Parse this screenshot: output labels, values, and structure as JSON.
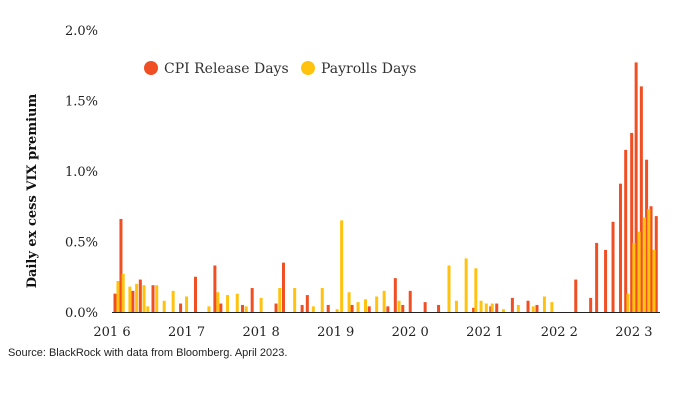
{
  "chart_data": {
    "type": "bar",
    "title": "",
    "xlabel": "",
    "ylabel": "Daily ex cess VIX premium",
    "ylim": [
      0,
      2.0
    ],
    "y_ticks": [
      {
        "value": 0.0,
        "label": "0.0%"
      },
      {
        "value": 0.5,
        "label": "0.5%"
      },
      {
        "value": 1.0,
        "label": "1.0%"
      },
      {
        "value": 1.5,
        "label": "1.5%"
      },
      {
        "value": 2.0,
        "label": "2.0%"
      }
    ],
    "xlim": [
      2016.0,
      2023.35
    ],
    "x_ticks": [
      {
        "value": 2016,
        "label": "201 6"
      },
      {
        "value": 2017,
        "label": "201 7"
      },
      {
        "value": 2018,
        "label": "201 8"
      },
      {
        "value": 2019,
        "label": "201 9"
      },
      {
        "value": 2020,
        "label": "202 0"
      },
      {
        "value": 2021,
        "label": "202 1"
      },
      {
        "value": 2022,
        "label": "202 2"
      },
      {
        "value": 2023,
        "label": "202 3"
      }
    ],
    "grid": false,
    "legend": "top",
    "series": [
      {
        "name": "CPI Release Days",
        "color": "#f04e23",
        "points": [
          [
            2016.04,
            0.13
          ],
          [
            2016.12,
            0.66
          ],
          [
            2016.28,
            0.15
          ],
          [
            2016.38,
            0.23
          ],
          [
            2016.55,
            0.19
          ],
          [
            2016.92,
            0.06
          ],
          [
            2017.12,
            0.25
          ],
          [
            2017.38,
            0.33
          ],
          [
            2017.46,
            0.06
          ],
          [
            2017.75,
            0.05
          ],
          [
            2017.88,
            0.17
          ],
          [
            2018.2,
            0.06
          ],
          [
            2018.3,
            0.35
          ],
          [
            2018.55,
            0.05
          ],
          [
            2018.62,
            0.12
          ],
          [
            2018.9,
            0.05
          ],
          [
            2019.22,
            0.05
          ],
          [
            2019.45,
            0.04
          ],
          [
            2019.7,
            0.04
          ],
          [
            2019.8,
            0.24
          ],
          [
            2019.9,
            0.05
          ],
          [
            2020.0,
            0.15
          ],
          [
            2020.2,
            0.07
          ],
          [
            2020.38,
            0.05
          ],
          [
            2020.85,
            0.03
          ],
          [
            2021.08,
            0.04
          ],
          [
            2021.16,
            0.06
          ],
          [
            2021.37,
            0.1
          ],
          [
            2021.58,
            0.08
          ],
          [
            2021.7,
            0.05
          ],
          [
            2022.22,
            0.23
          ],
          [
            2022.42,
            0.1
          ],
          [
            2022.5,
            0.49
          ],
          [
            2022.62,
            0.44
          ],
          [
            2022.72,
            0.64
          ],
          [
            2022.82,
            0.91
          ],
          [
            2022.89,
            1.15
          ],
          [
            2022.97,
            1.27
          ],
          [
            2023.03,
            1.77
          ],
          [
            2023.1,
            1.6
          ],
          [
            2023.17,
            1.08
          ],
          [
            2023.23,
            0.75
          ],
          [
            2023.3,
            0.68
          ]
        ]
      },
      {
        "name": "Payrolls Days",
        "color": "#ffc20e",
        "points": [
          [
            2016.08,
            0.22
          ],
          [
            2016.15,
            0.27
          ],
          [
            2016.24,
            0.18
          ],
          [
            2016.33,
            0.2
          ],
          [
            2016.43,
            0.19
          ],
          [
            2016.48,
            0.04
          ],
          [
            2016.6,
            0.19
          ],
          [
            2016.7,
            0.08
          ],
          [
            2016.82,
            0.15
          ],
          [
            2017.0,
            0.11
          ],
          [
            2017.3,
            0.04
          ],
          [
            2017.42,
            0.14
          ],
          [
            2017.55,
            0.12
          ],
          [
            2017.68,
            0.13
          ],
          [
            2017.8,
            0.04
          ],
          [
            2018.0,
            0.1
          ],
          [
            2018.25,
            0.17
          ],
          [
            2018.45,
            0.17
          ],
          [
            2018.7,
            0.04
          ],
          [
            2018.82,
            0.17
          ],
          [
            2019.02,
            0.02
          ],
          [
            2019.08,
            0.65
          ],
          [
            2019.18,
            0.14
          ],
          [
            2019.3,
            0.07
          ],
          [
            2019.4,
            0.09
          ],
          [
            2019.55,
            0.11
          ],
          [
            2019.65,
            0.15
          ],
          [
            2019.85,
            0.08
          ],
          [
            2020.52,
            0.33
          ],
          [
            2020.62,
            0.08
          ],
          [
            2020.75,
            0.38
          ],
          [
            2020.88,
            0.31
          ],
          [
            2020.95,
            0.08
          ],
          [
            2021.02,
            0.06
          ],
          [
            2021.1,
            0.06
          ],
          [
            2021.25,
            0.02
          ],
          [
            2021.45,
            0.05
          ],
          [
            2021.65,
            0.04
          ],
          [
            2021.8,
            0.11
          ],
          [
            2021.9,
            0.07
          ],
          [
            2022.92,
            0.13
          ],
          [
            2023.0,
            0.49
          ],
          [
            2023.07,
            0.57
          ],
          [
            2023.14,
            0.67
          ],
          [
            2023.2,
            0.73
          ],
          [
            2023.27,
            0.44
          ]
        ]
      }
    ]
  },
  "source_note": "Source: BlackRock with data from Bloomberg. April 2023."
}
